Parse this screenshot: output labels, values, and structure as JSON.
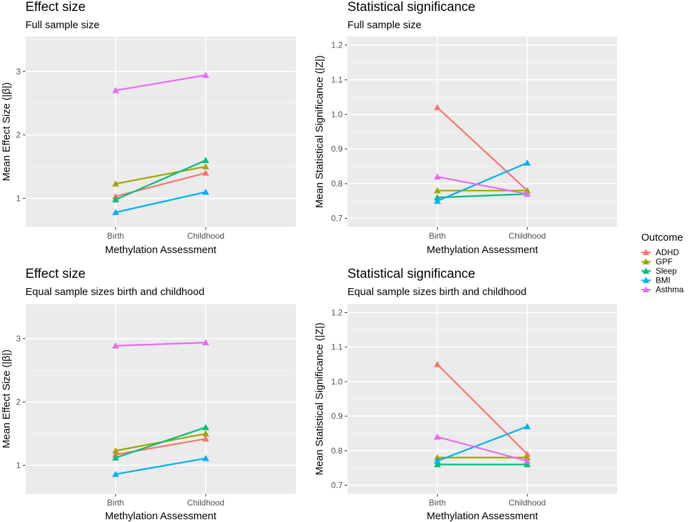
{
  "legend": {
    "title": "Outcome",
    "items": [
      {
        "name": "ADHD",
        "color": "#F8766D"
      },
      {
        "name": "GPF",
        "color": "#A3A500"
      },
      {
        "name": "Sleep",
        "color": "#00BF7D"
      },
      {
        "name": "BMI",
        "color": "#00B0F6"
      },
      {
        "name": "Asthma",
        "color": "#E76BF3"
      }
    ]
  },
  "chart_data": [
    {
      "type": "line",
      "title": "Effect size",
      "subtitle": "Full sample size",
      "xlabel": "Methylation Assessment",
      "ylabel": "Mean Effect Size (|β|)",
      "categories": [
        "Birth",
        "Childhood"
      ],
      "ylim": [
        0.55,
        3.55
      ],
      "yticks": [
        1,
        2,
        3
      ],
      "yticklabels": [
        "1",
        "2",
        "3"
      ],
      "series": [
        {
          "name": "ADHD",
          "values": [
            1.03,
            1.4
          ]
        },
        {
          "name": "GPF",
          "values": [
            1.23,
            1.5
          ]
        },
        {
          "name": "Sleep",
          "values": [
            0.98,
            1.6
          ]
        },
        {
          "name": "BMI",
          "values": [
            0.78,
            1.1
          ]
        },
        {
          "name": "Asthma",
          "values": [
            2.7,
            2.94
          ]
        }
      ]
    },
    {
      "type": "line",
      "title": "Statistical significance",
      "subtitle": "Full sample size",
      "xlabel": "Methylation Assessment",
      "ylabel": "Mean Statistical Significance (|Z|)",
      "categories": [
        "Birth",
        "Childhood"
      ],
      "ylim": [
        0.675,
        1.225
      ],
      "yticks": [
        0.7,
        0.8,
        0.9,
        1.0,
        1.1,
        1.2
      ],
      "yticklabels": [
        "0.7",
        "0.8",
        "0.9",
        "1.0",
        "1.1",
        "1.2"
      ],
      "series": [
        {
          "name": "ADHD",
          "values": [
            1.02,
            0.78
          ]
        },
        {
          "name": "GPF",
          "values": [
            0.78,
            0.78
          ]
        },
        {
          "name": "Sleep",
          "values": [
            0.76,
            0.77
          ]
        },
        {
          "name": "BMI",
          "values": [
            0.75,
            0.86
          ]
        },
        {
          "name": "Asthma",
          "values": [
            0.82,
            0.77
          ]
        }
      ]
    },
    {
      "type": "line",
      "title": "Effect size",
      "subtitle": "Equal sample sizes birth and childhood",
      "xlabel": "Methylation Assessment",
      "ylabel": "Mean Effect Size (|β|)",
      "categories": [
        "Birth",
        "Childhood"
      ],
      "ylim": [
        0.55,
        3.55
      ],
      "yticks": [
        1,
        2,
        3
      ],
      "yticklabels": [
        "1",
        "2",
        "3"
      ],
      "series": [
        {
          "name": "ADHD",
          "values": [
            1.17,
            1.42
          ]
        },
        {
          "name": "GPF",
          "values": [
            1.23,
            1.5
          ]
        },
        {
          "name": "Sleep",
          "values": [
            1.12,
            1.6
          ]
        },
        {
          "name": "BMI",
          "values": [
            0.86,
            1.11
          ]
        },
        {
          "name": "Asthma",
          "values": [
            2.89,
            2.94
          ]
        }
      ]
    },
    {
      "type": "line",
      "title": "Statistical significance",
      "subtitle": "Equal sample sizes birth and childhood",
      "xlabel": "Methylation Assessment",
      "ylabel": "Mean Statistical Significance (|Z|)",
      "categories": [
        "Birth",
        "Childhood"
      ],
      "ylim": [
        0.675,
        1.225
      ],
      "yticks": [
        0.7,
        0.8,
        0.9,
        1.0,
        1.1,
        1.2
      ],
      "yticklabels": [
        "0.7",
        "0.8",
        "0.9",
        "1.0",
        "1.1",
        "1.2"
      ],
      "series": [
        {
          "name": "ADHD",
          "values": [
            1.05,
            0.79
          ]
        },
        {
          "name": "GPF",
          "values": [
            0.78,
            0.78
          ]
        },
        {
          "name": "Sleep",
          "values": [
            0.76,
            0.76
          ]
        },
        {
          "name": "BMI",
          "values": [
            0.77,
            0.87
          ]
        },
        {
          "name": "Asthma",
          "values": [
            0.84,
            0.77
          ]
        }
      ]
    }
  ]
}
